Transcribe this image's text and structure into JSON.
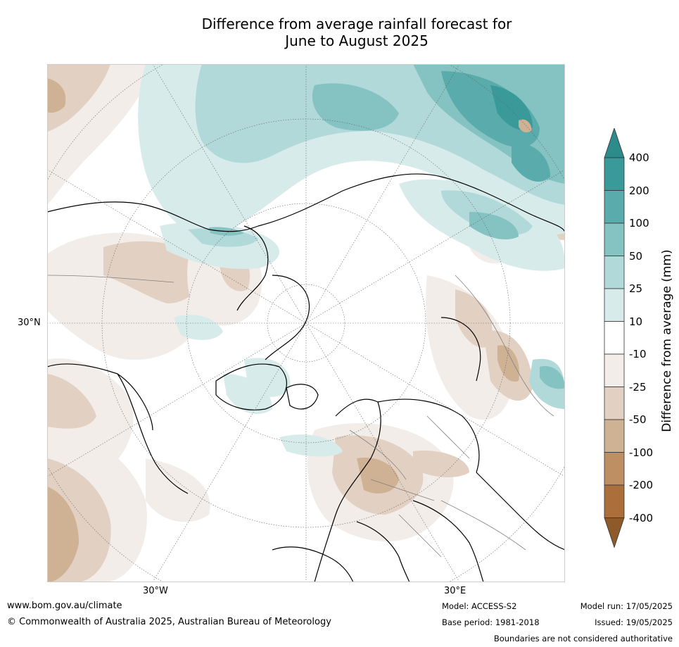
{
  "title_line1": "Difference from average rainfall forecast for",
  "title_line2": "June to August 2025",
  "axis": {
    "lat_label": "30°N",
    "lon_label_left": "30°W",
    "lon_label_right": "30°E"
  },
  "colorbar": {
    "title": "Difference from average (mm)",
    "ticks": [
      "400",
      "200",
      "100",
      "50",
      "25",
      "10",
      "-10",
      "-25",
      "-50",
      "-100",
      "-200",
      "-400"
    ],
    "colors": [
      "#2e8b8b",
      "#3a9a9a",
      "#5aabab",
      "#85c2c2",
      "#b2d9d9",
      "#d8ebeb",
      "#ffffff",
      "#f2ede8",
      "#e2d1c3",
      "#cfb194",
      "#bd8f63",
      "#aa6f3b",
      "#8e5a2a"
    ]
  },
  "footer": {
    "website": "www.bom.gov.au/climate",
    "copyright": "© Commonwealth of Australia 2025, Australian Bureau of Meteorology",
    "model": "Model: ACCESS-S2",
    "base_period": "Base period: 1981-2018",
    "model_run": "Model run: 17/05/2025",
    "issued": "Issued: 19/05/2025",
    "disclaimer": "Boundaries are not considered authoritative"
  }
}
